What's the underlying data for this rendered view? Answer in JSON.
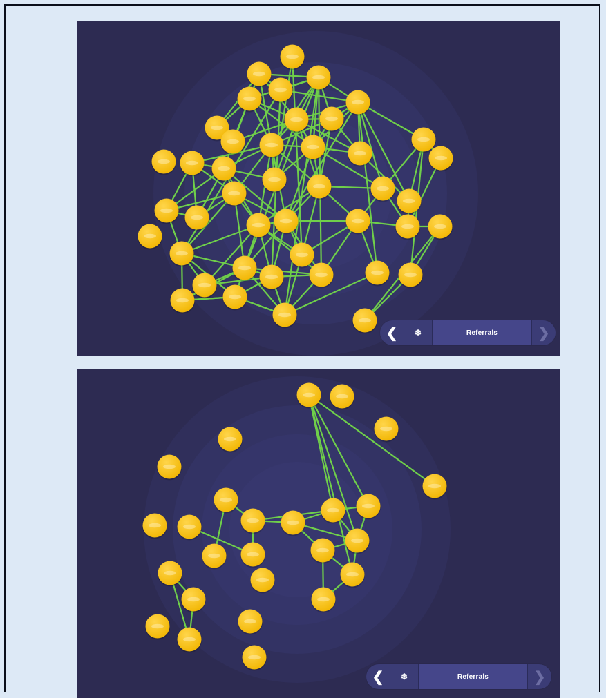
{
  "colors": {
    "background": "#2d2b52",
    "ring": "#3a3a74",
    "node": "#f2b705",
    "node_highlight": "#ffd54a",
    "edge": "#6fcf4a",
    "nav_bar": "#3b3c76"
  },
  "panels": [
    {
      "id": "top",
      "nav": {
        "back_icon": "chevron-left-icon",
        "freeze_icon": "snowflake-icon",
        "label": "Referrals",
        "forward_icon": "chevron-right-icon"
      }
    },
    {
      "id": "bottom",
      "nav": {
        "back_icon": "chevron-left-icon",
        "freeze_icon": "snowflake-icon",
        "label": "Referrals",
        "forward_icon": "chevron-right-icon"
      }
    }
  ]
}
